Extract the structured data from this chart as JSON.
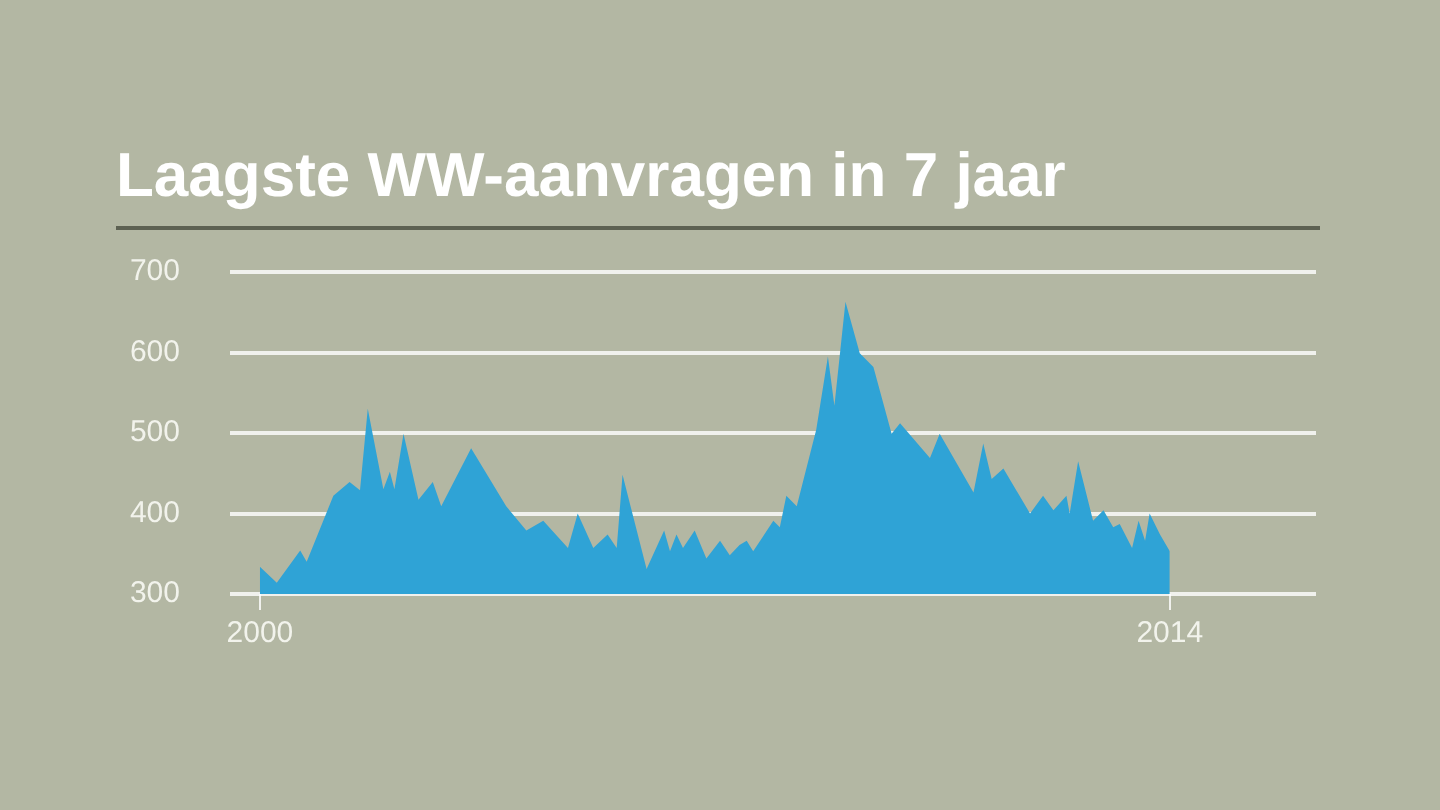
{
  "chart_data": {
    "type": "area",
    "title": "Laagste WW-aanvragen in 7 jaar",
    "x": [
      2000.0,
      2000.26,
      2000.62,
      2000.72,
      2001.13,
      2001.38,
      2001.54,
      2001.66,
      2001.9,
      2002.0,
      2002.07,
      2002.21,
      2002.44,
      2002.66,
      2002.79,
      2003.25,
      2003.79,
      2004.1,
      2004.36,
      2004.74,
      2004.89,
      2005.13,
      2005.35,
      2005.49,
      2005.58,
      2005.95,
      2006.22,
      2006.31,
      2006.41,
      2006.51,
      2006.69,
      2006.87,
      2007.08,
      2007.23,
      2007.38,
      2007.49,
      2007.59,
      2007.9,
      2008.0,
      2008.1,
      2008.26,
      2008.56,
      2008.74,
      2008.84,
      2009.01,
      2009.23,
      2009.44,
      2009.72,
      2009.85,
      2010.31,
      2010.46,
      2010.98,
      2011.13,
      2011.26,
      2011.44,
      2011.85,
      2012.05,
      2012.21,
      2012.41,
      2012.46,
      2012.59,
      2012.82,
      2012.98,
      2013.13,
      2013.23,
      2013.42,
      2013.52,
      2013.62,
      2013.69,
      2013.85,
      2014.0
    ],
    "series": [
      {
        "color": "#2fa3d6",
        "values": [
          334,
          314,
          354,
          340,
          422,
          439,
          429,
          530,
          430,
          452,
          430,
          499,
          417,
          439,
          409,
          481,
          409,
          379,
          391,
          357,
          400,
          357,
          374,
          357,
          448,
          331,
          379,
          353,
          374,
          357,
          379,
          344,
          366,
          348,
          361,
          366,
          353,
          391,
          383,
          422,
          409,
          504,
          595,
          534,
          663,
          599,
          582,
          499,
          512,
          469,
          499,
          426,
          487,
          443,
          456,
          400,
          422,
          404,
          422,
          400,
          465,
          391,
          404,
          383,
          387,
          357,
          391,
          366,
          400,
          374,
          353
        ]
      }
    ],
    "xlim": [
      1999.54,
      2016.25
    ],
    "xticks": [
      2000,
      2014
    ],
    "ylim": [
      300,
      700
    ],
    "yticks": [
      300,
      400,
      500,
      600,
      700
    ],
    "grid": "y"
  }
}
